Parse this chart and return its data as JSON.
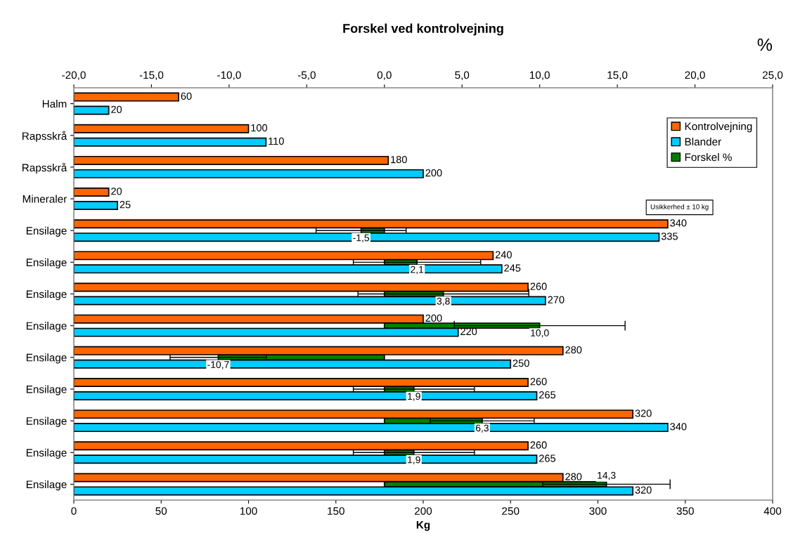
{
  "chart_data": {
    "type": "bar",
    "orientation": "horizontal",
    "title": "Forskel ved kontrolvejning",
    "xlabel": "Kg",
    "x2label": "%",
    "categories": [
      "Halm",
      "Rapsskrå",
      "Rapsskrå",
      "Mineraler",
      "Ensilage",
      "Ensilage",
      "Ensilage",
      "Ensilage",
      "Ensilage",
      "Ensilage",
      "Ensilage",
      "Ensilage",
      "Ensilage"
    ],
    "xlim": [
      0,
      400
    ],
    "xticks": [
      0,
      50,
      100,
      150,
      200,
      250,
      300,
      350,
      400
    ],
    "x2lim": [
      -20,
      25
    ],
    "x2ticks": [
      {
        "value": -20,
        "label": "-20,0"
      },
      {
        "value": -15,
        "label": "-15,0"
      },
      {
        "value": -10,
        "label": "-10,0"
      },
      {
        "value": -5,
        "label": "-5,0"
      },
      {
        "value": 0,
        "label": "0,0"
      },
      {
        "value": 5,
        "label": "5,0"
      },
      {
        "value": 10,
        "label": "10,0"
      },
      {
        "value": 15,
        "label": "15,0"
      },
      {
        "value": 20,
        "label": "20,0"
      },
      {
        "value": 25,
        "label": "25,0"
      }
    ],
    "data_labels": true,
    "legend": "top right",
    "grid": false,
    "series": [
      {
        "name": "Kontrolvejning",
        "color": "#ff6600",
        "values": [
          60,
          100,
          180,
          20,
          340,
          240,
          260,
          200,
          280,
          260,
          320,
          260,
          280
        ]
      },
      {
        "name": "Blander",
        "color": "#00ccff",
        "values": [
          20,
          110,
          200,
          25,
          335,
          245,
          270,
          220,
          250,
          265,
          340,
          265,
          320
        ]
      },
      {
        "name": "Forskel %",
        "color": "#008000",
        "axis": "x2",
        "values": [
          null,
          null,
          null,
          null,
          -1.5,
          2.1,
          3.8,
          10.0,
          -10.7,
          1.9,
          6.3,
          1.9,
          14.3
        ],
        "value_labels": [
          null,
          null,
          null,
          null,
          "-1,5",
          "2,1",
          "3,8",
          "10,0",
          "-10,7",
          "1,9",
          "6,3",
          "1,9",
          "14,3"
        ],
        "errors": [
          null,
          null,
          null,
          null,
          2.9,
          4.1,
          5.5,
          5.5,
          3.1,
          3.9,
          3.35,
          3.9,
          4.1
        ]
      }
    ],
    "annotations": [
      "Usikkerhed ± 10 kg"
    ]
  }
}
